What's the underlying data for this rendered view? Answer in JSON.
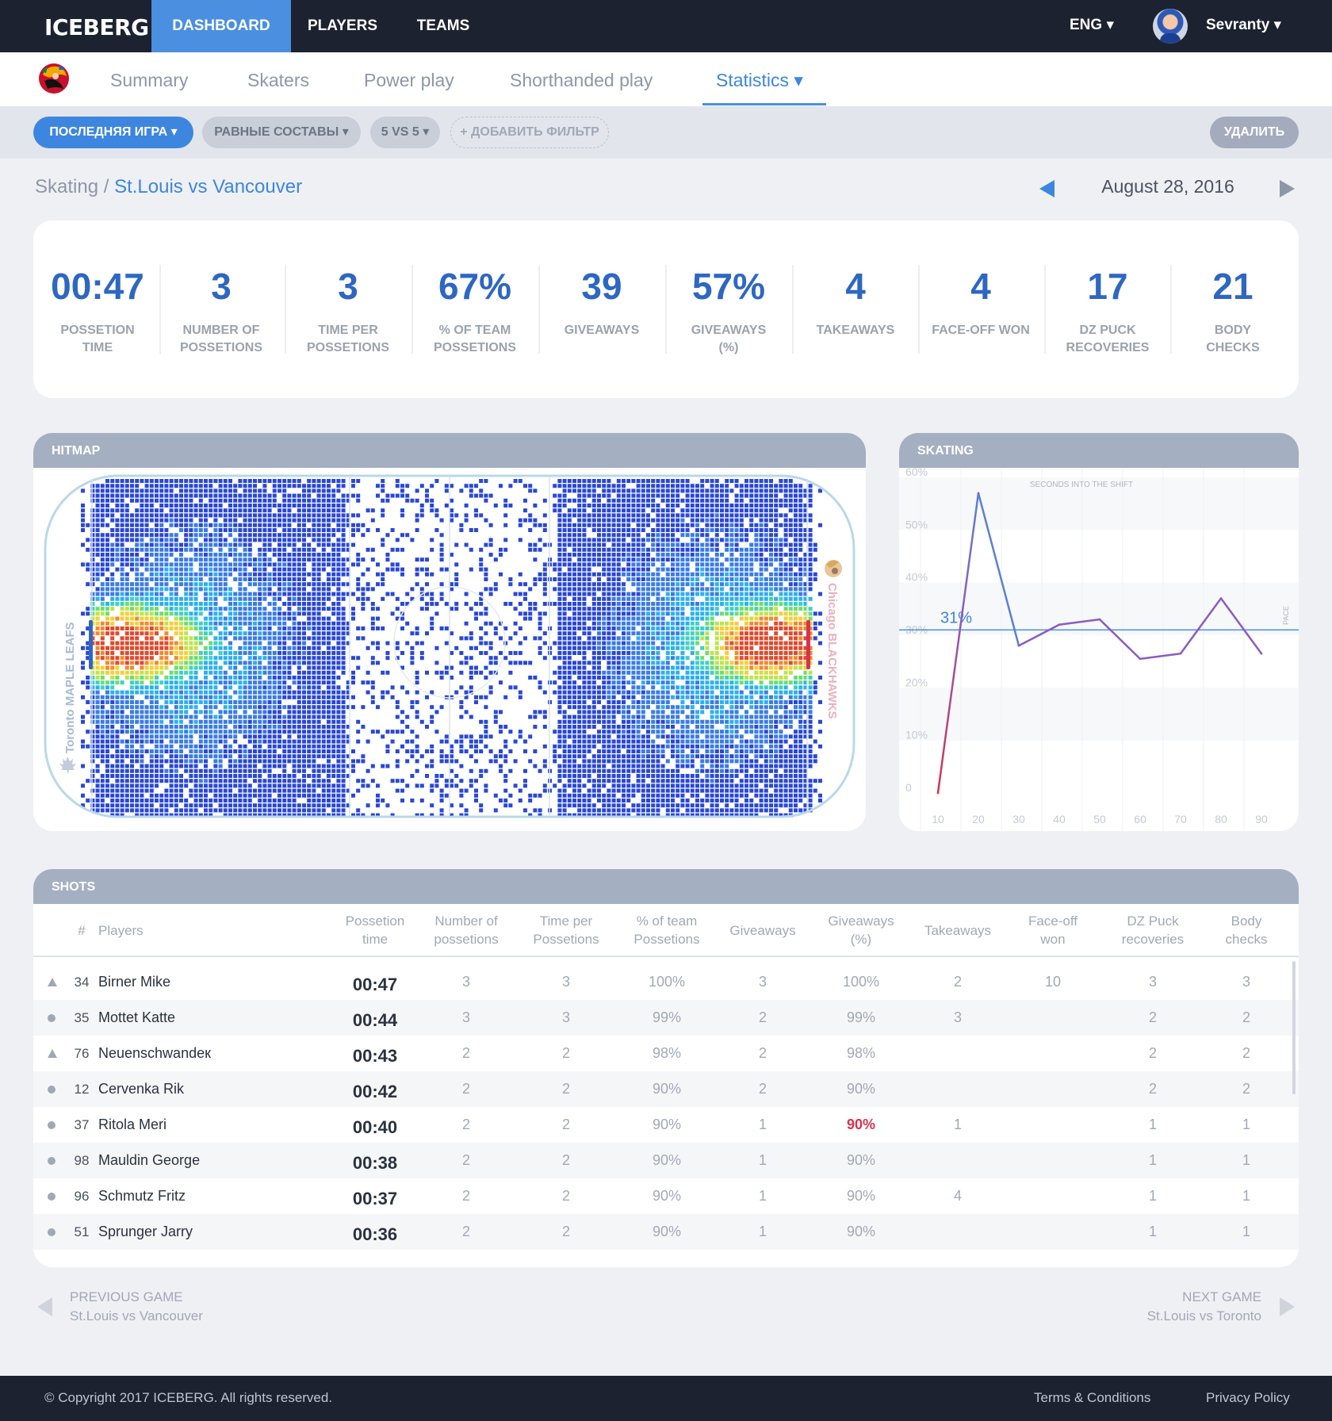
{
  "app": {
    "logo": "ICEBERG"
  },
  "topnav": {
    "items": [
      {
        "label": "DASHBOARD",
        "active": true
      },
      {
        "label": "PLAYERS"
      },
      {
        "label": "TEAMS"
      }
    ],
    "language": "ENG ▾",
    "user": "Sevranty ▾"
  },
  "subnav": {
    "tabs": [
      {
        "label": "Summary"
      },
      {
        "label": "Skaters"
      },
      {
        "label": "Power play"
      },
      {
        "label": "Shorthanded play"
      },
      {
        "label": "Statistics ▾",
        "active": true
      }
    ]
  },
  "filters": {
    "chips": [
      "ПОСЛЕДНЯЯ ИГРА ▾",
      "РАВНЫЕ СОСТАВЫ ▾",
      "5 VS 5 ▾",
      "+ ДОБАВИТЬ ФИЛЬТР"
    ],
    "delete": "УДАЛИТЬ"
  },
  "breadcrumb": {
    "section": "Skating",
    "sep": " / ",
    "game": "St.Louis vs Vancouver"
  },
  "date": "August 28, 2016",
  "stats": [
    {
      "value": "00:47",
      "line1": "POSSETION",
      "line2": "TIME"
    },
    {
      "value": "3",
      "line1": "NUMBER OF",
      "line2": "POSSETIONS"
    },
    {
      "value": "3",
      "line1": "TIME PER",
      "line2": "POSSETIONS"
    },
    {
      "value": "67%",
      "line1": "% OF TEAM",
      "line2": "POSSETIONS"
    },
    {
      "value": "39",
      "line1": "GIVEAWAYS",
      "line2": ""
    },
    {
      "value": "57%",
      "line1": "GIVEAWAYS",
      "line2": "(%)"
    },
    {
      "value": "4",
      "line1": "TAKEAWAYS",
      "line2": ""
    },
    {
      "value": "4",
      "line1": "FACE-OFF WON",
      "line2": ""
    },
    {
      "value": "17",
      "line1": "DZ PUCK",
      "line2": "RECOVERIES"
    },
    {
      "value": "21",
      "line1": "BODY",
      "line2": "CHECKS"
    }
  ],
  "hitmap": {
    "title": "HITMAP",
    "left_team": "Toronto MAPLE LEAFS",
    "right_team": "Chicago BLACKHAWKS"
  },
  "skating": {
    "title": "SKATING",
    "annotation": "SECONDS INTO THE SHIFT",
    "right_label": "PACE",
    "marker_label": "31%",
    "colors": {
      "up": "#d6334e",
      "line": "#8a5cc0",
      "peak": "#5b7fd4",
      "marker": "#4a8fe0"
    }
  },
  "chart_data": {
    "type": "line",
    "title": "",
    "xlabel": "SECONDS INTO THE SHIFT",
    "ylabel": "PACE",
    "x": [
      10,
      20,
      30,
      40,
      50,
      60,
      70,
      80,
      90
    ],
    "series": [
      {
        "values": [
          0,
          57,
          28,
          32,
          33,
          25.5,
          26.5,
          37,
          26.5
        ]
      }
    ],
    "reference_line": 31,
    "x_ticks": [
      "10",
      "20",
      "30",
      "40",
      "50",
      "60",
      "70",
      "80",
      "90"
    ],
    "y_ticks": [
      "0",
      "10%",
      "20%",
      "30%",
      "40%",
      "50%",
      "60%"
    ],
    "ylim": [
      0,
      60
    ],
    "xlim": [
      0,
      95
    ],
    "grid": true
  },
  "shots": {
    "title": "SHOTS",
    "columns": [
      {
        "l1": "#",
        "l2": ""
      },
      {
        "l1": "Players",
        "l2": ""
      },
      {
        "l1": "Possetion",
        "l2": "time"
      },
      {
        "l1": "Number of",
        "l2": "possetions"
      },
      {
        "l1": "Time per",
        "l2": "Possetions"
      },
      {
        "l1": "% of team",
        "l2": "Possetions"
      },
      {
        "l1": "Giveaways",
        "l2": ""
      },
      {
        "l1": "Giveaways",
        "l2": "(%)"
      },
      {
        "l1": "Takeaways",
        "l2": ""
      },
      {
        "l1": "Face-off",
        "l2": "won"
      },
      {
        "l1": "DZ Puck",
        "l2": "recoveries"
      },
      {
        "l1": "Body",
        "l2": "checks"
      }
    ],
    "rows": [
      {
        "marker": "up",
        "num": "34",
        "name": "Birner Mike",
        "time": "00:47",
        "poss": "3",
        "tpp": "3",
        "team": "100%",
        "give": "3",
        "givep": "100%",
        "take": "2",
        "face": "10",
        "dz": "3",
        "body": "3"
      },
      {
        "marker": "dot",
        "num": "35",
        "name": "Mottet Katte",
        "time": "00:44",
        "poss": "3",
        "tpp": "3",
        "team": "99%",
        "give": "2",
        "givep": "99%",
        "take": "3",
        "face": "",
        "dz": "2",
        "body": "2"
      },
      {
        "marker": "up",
        "num": "76",
        "name": "Neuenschwandeк Caimon",
        "time": "00:43",
        "poss": "2",
        "tpp": "2",
        "team": "98%",
        "give": "2",
        "givep": "98%",
        "take": "",
        "face": "",
        "dz": "2",
        "body": "2"
      },
      {
        "marker": "dot",
        "num": "12",
        "name": "Cervenka Rik",
        "time": "00:42",
        "poss": "2",
        "tpp": "2",
        "team": "90%",
        "give": "2",
        "givep": "90%",
        "take": "",
        "face": "",
        "dz": "2",
        "body": "2"
      },
      {
        "marker": "dot",
        "num": "37",
        "name": "Ritola Meri",
        "time": "00:40",
        "poss": "2",
        "tpp": "2",
        "team": "90%",
        "give": "1",
        "givep": "90%",
        "givep_alert": true,
        "take": "1",
        "face": "",
        "dz": "1",
        "body": "1"
      },
      {
        "marker": "dot",
        "num": "98",
        "name": "Mauldin George",
        "time": "00:38",
        "poss": "2",
        "tpp": "2",
        "team": "90%",
        "give": "1",
        "givep": "90%",
        "take": "",
        "face": "",
        "dz": "1",
        "body": "1"
      },
      {
        "marker": "dot",
        "num": "96",
        "name": "Schmutz Fritz",
        "time": "00:37",
        "poss": "2",
        "tpp": "2",
        "team": "90%",
        "give": "1",
        "givep": "90%",
        "take": "4",
        "face": "",
        "dz": "1",
        "body": "1"
      },
      {
        "marker": "dot",
        "num": "51",
        "name": "Sprunger Jarry",
        "time": "00:36",
        "poss": "2",
        "tpp": "2",
        "team": "90%",
        "give": "1",
        "givep": "90%",
        "take": "",
        "face": "",
        "dz": "1",
        "body": "1"
      }
    ]
  },
  "pager": {
    "prev_label": "PREVIOUS GAME",
    "prev_game": "St.Louis vs Vancouver",
    "next_label": "NEXT GAME",
    "next_game": "St.Louis vs Toronto"
  },
  "footer": {
    "copyright": "© Copyright 2017 ICEBERG. All rights reserved.",
    "terms": "Terms & Conditions",
    "privacy": "Privacy Policy"
  }
}
